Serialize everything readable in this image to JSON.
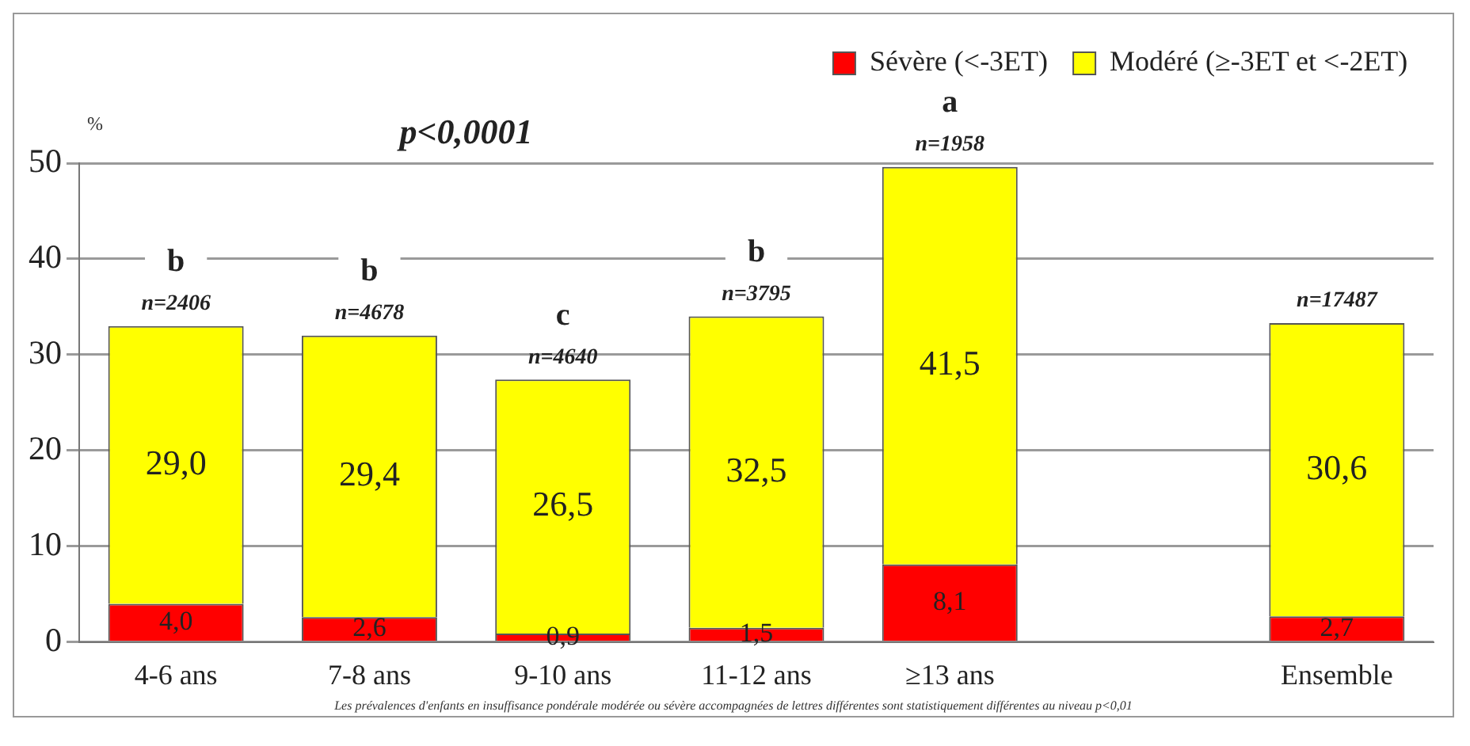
{
  "chart_data": {
    "type": "bar",
    "stacked": true,
    "ylabel": "%",
    "categories": [
      "4-6 ans",
      "7-8 ans",
      "9-10 ans",
      "11-12 ans",
      "≥13 ans",
      null,
      "Ensemble"
    ],
    "series": [
      {
        "name": "Sévère (<-3ET)",
        "color": "#ff0000",
        "values": [
          4.0,
          2.6,
          0.9,
          1.5,
          8.1,
          null,
          2.7
        ],
        "value_labels": [
          "4,0",
          "2,6",
          "0,9",
          "1,5",
          "8,1",
          null,
          "2,7"
        ]
      },
      {
        "name": "Modéré (≥-3ET et <-2ET)",
        "color": "#ffff00",
        "values": [
          29.0,
          29.4,
          26.5,
          32.5,
          41.5,
          null,
          30.6
        ],
        "value_labels": [
          "29,0",
          "29,4",
          "26,5",
          "32,5",
          "41,5",
          null,
          "30,6"
        ]
      }
    ],
    "ylim": [
      0,
      50
    ],
    "yticks": [
      0,
      10,
      20,
      30,
      40,
      50
    ],
    "grid": "y",
    "legend": "top right",
    "annotations": [
      "p<0,0001",
      {
        "text": "b",
        "x": "4-6 ans",
        "y": 33.0
      },
      {
        "text": "n=2406",
        "x": "4-6 ans",
        "y": 33.0
      },
      {
        "text": "b",
        "x": "7-8 ans",
        "y": 32.0
      },
      {
        "text": "n=4678",
        "x": "7-8 ans",
        "y": 32.0
      },
      {
        "text": "c",
        "x": "9-10 ans",
        "y": 27.4
      },
      {
        "text": "n=4640",
        "x": "9-10 ans",
        "y": 27.4
      },
      {
        "text": "b",
        "x": "11-12 ans",
        "y": 34.0
      },
      {
        "text": "n=3795",
        "x": "11-12 ans",
        "y": 34.0
      },
      {
        "text": "a",
        "x": "≥13 ans",
        "y": 49.6
      },
      {
        "text": "n=1958",
        "x": "≥13 ans",
        "y": 49.6
      },
      {
        "text": "n=17487",
        "x": "Ensemble",
        "y": 33.3
      },
      "Les prévalences d'enfants en insuffisance pondérale modérée ou sévère accompagnées de lettres différentes sont statistiquement différentes au niveau p<0,01"
    ]
  }
}
